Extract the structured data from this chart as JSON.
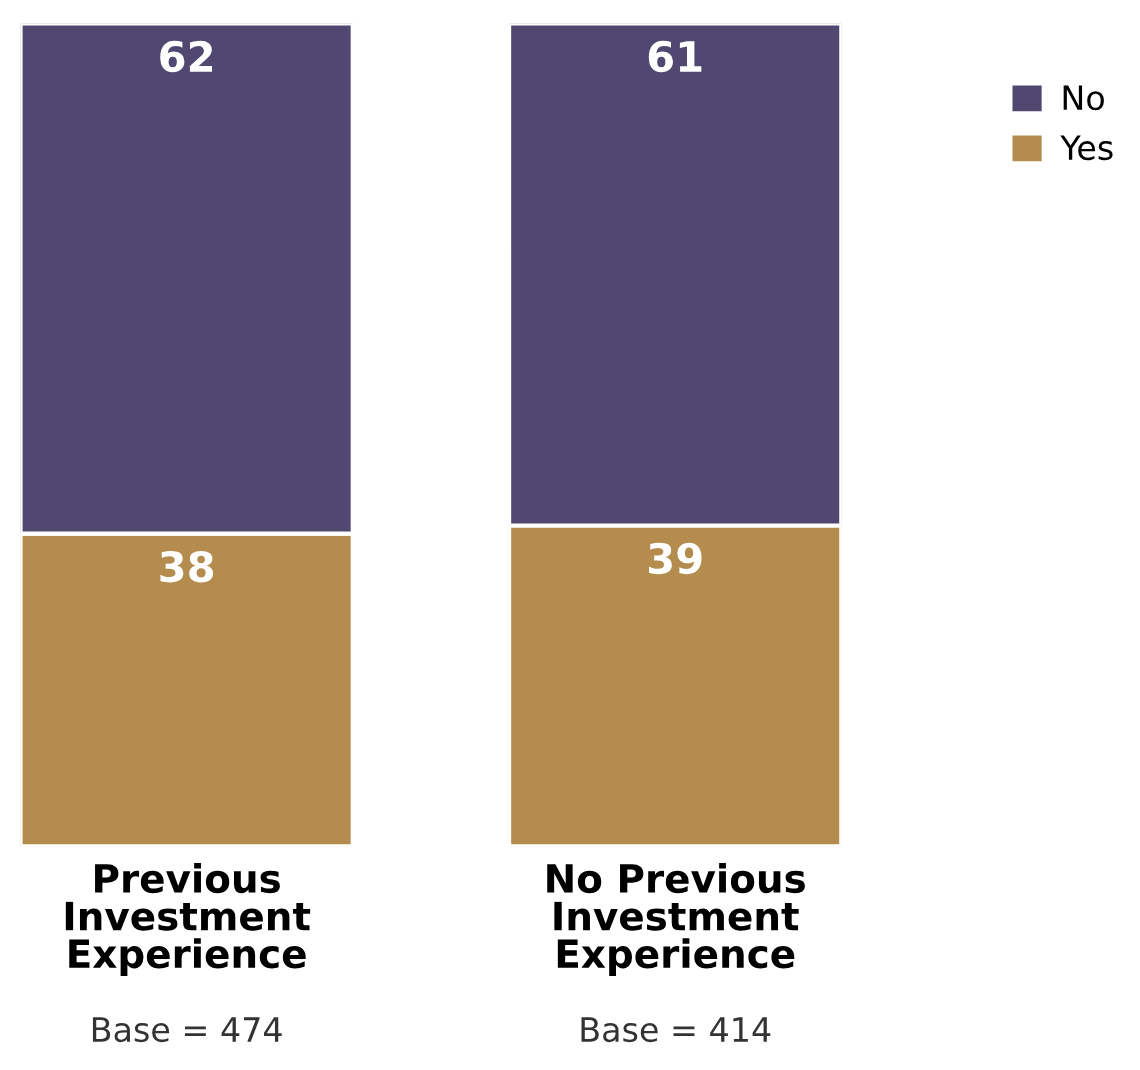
{
  "chart_data": {
    "type": "bar",
    "stacked": true,
    "categories": [
      "Previous\nInvestment\nExperience",
      "No Previous\nInvestment\nExperience"
    ],
    "series": [
      {
        "name": "Yes",
        "color": "#b48c4e",
        "values": [
          38,
          39
        ]
      },
      {
        "name": "No",
        "color": "#514872",
        "values": [
          62,
          61
        ]
      }
    ],
    "ylim": [
      0,
      100
    ],
    "tick_labels": "x",
    "data_labels": true,
    "legend": "top right",
    "grid": false,
    "annotations": [
      "Base = 474",
      "Base = 414"
    ]
  }
}
